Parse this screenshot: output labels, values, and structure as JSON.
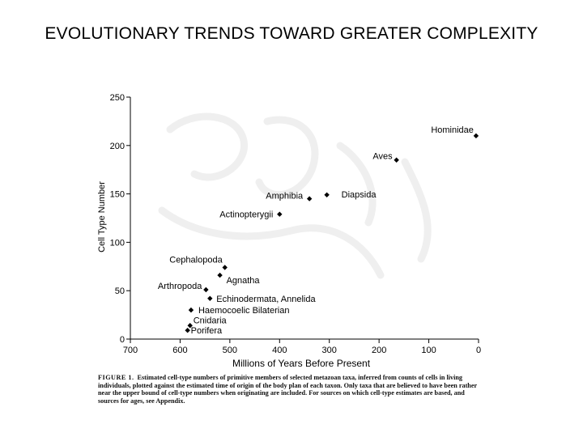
{
  "title": "EVOLUTIONARY TRENDS TOWARD GREATER COMPLEXITY",
  "figure": {
    "caption_label": "FIGURE 1.",
    "caption_text": "Estimated cell-type numbers of primitive members of selected metazoan taxa, inferred from counts of cells in living individuals, plotted against the estimated time of origin of the body plan of each taxon. Only taxa that are believed to have been rather near the upper bound of cell-type numbers when originating are included. For sources on which cell-type estimates are based, and sources for ages, see Appendix."
  },
  "chart_data": {
    "type": "scatter",
    "title": "",
    "xlabel": "Millions of Years Before Present",
    "ylabel": "Cell Type Number",
    "xlim": [
      700,
      0
    ],
    "ylim": [
      0,
      250
    ],
    "x_ticks": [
      700,
      600,
      500,
      400,
      300,
      200,
      100,
      0
    ],
    "y_ticks": [
      0,
      50,
      100,
      150,
      200,
      250
    ],
    "grid": false,
    "points": [
      {
        "label": "Porifera",
        "x": 585,
        "y": 9
      },
      {
        "label": "Cnidaria",
        "x": 580,
        "y": 14
      },
      {
        "label": "Haemocoelic Bilaterian",
        "x": 578,
        "y": 30
      },
      {
        "label": "Echinodermata, Annelida",
        "x": 540,
        "y": 42
      },
      {
        "label": "Arthropoda",
        "x": 548,
        "y": 51
      },
      {
        "label": "Agnatha",
        "x": 520,
        "y": 66
      },
      {
        "label": "Cephalopoda",
        "x": 510,
        "y": 74
      },
      {
        "label": "Actinopterygii",
        "x": 400,
        "y": 129
      },
      {
        "label": "Amphibia",
        "x": 340,
        "y": 145
      },
      {
        "label": "Diapsida",
        "x": 305,
        "y": 149
      },
      {
        "label": "Aves",
        "x": 165,
        "y": 185
      },
      {
        "label": "Hominidae",
        "x": 5,
        "y": 210
      }
    ]
  }
}
